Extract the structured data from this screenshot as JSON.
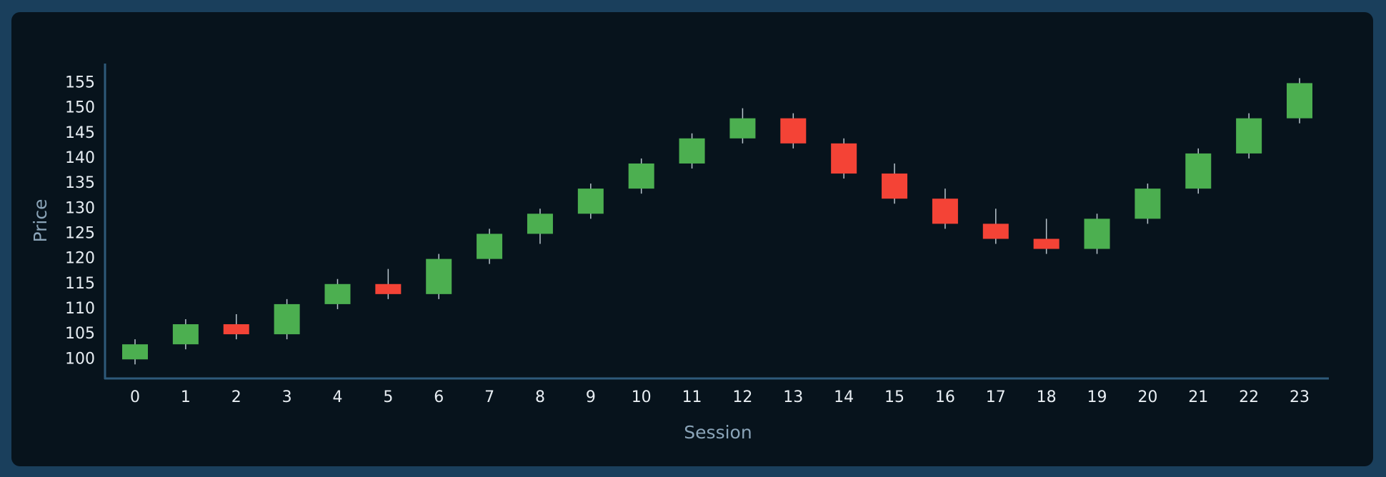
{
  "chart_data": {
    "type": "candlestick",
    "x_label": "Session",
    "y_label": "Price",
    "categories": [
      "0",
      "1",
      "2",
      "3",
      "4",
      "5",
      "6",
      "7",
      "8",
      "9",
      "10",
      "11",
      "12",
      "13",
      "14",
      "15",
      "16",
      "17",
      "18",
      "19",
      "20",
      "21",
      "22",
      "23"
    ],
    "open": [
      100,
      103,
      107,
      105,
      111,
      115,
      113,
      120,
      125,
      129,
      134,
      139,
      144,
      148,
      143,
      137,
      132,
      127,
      124,
      122,
      128,
      134,
      141,
      148
    ],
    "high": [
      104,
      108,
      109,
      112,
      116,
      118,
      121,
      126,
      130,
      135,
      140,
      145,
      150,
      149,
      144,
      139,
      134,
      130,
      128,
      129,
      135,
      142,
      149,
      156
    ],
    "low": [
      99,
      102,
      104,
      104,
      110,
      112,
      112,
      119,
      123,
      128,
      133,
      138,
      143,
      142,
      136,
      131,
      126,
      123,
      121,
      121,
      127,
      133,
      140,
      147
    ],
    "close": [
      103,
      107,
      105,
      111,
      115,
      113,
      120,
      125,
      129,
      134,
      139,
      144,
      148,
      143,
      137,
      132,
      127,
      124,
      122,
      128,
      134,
      141,
      148,
      155
    ],
    "up_color": "#4caf50",
    "down_color": "#f44336",
    "ylim": [
      96.2,
      158.9
    ],
    "yticks": [
      100,
      105,
      110,
      115,
      120,
      125,
      130,
      135,
      140,
      145,
      150,
      155
    ]
  }
}
